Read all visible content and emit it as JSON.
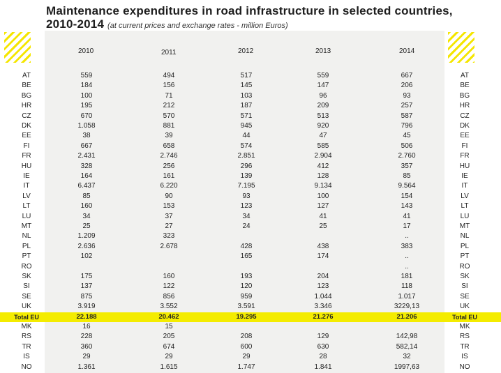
{
  "title": {
    "main_line1": "Maintenance expenditures in road infrastructure in selected countries,",
    "main_line2": "2010-2014",
    "subtitle": "(at current prices and exchange rates - million Euros)"
  },
  "colors": {
    "highlight": "#f4ec00",
    "hatch": "#f5e600",
    "panel": "#f1f1ef"
  },
  "years": [
    "2010",
    "2011",
    "2012",
    "2013",
    "2014"
  ],
  "rows": [
    {
      "code": "AT",
      "values": [
        "559",
        "494",
        "517",
        "559",
        "667"
      ]
    },
    {
      "code": "BE",
      "values": [
        "184",
        "156",
        "145",
        "147",
        "206"
      ]
    },
    {
      "code": "BG",
      "values": [
        "100",
        "71",
        "103",
        "96",
        "93"
      ]
    },
    {
      "code": "HR",
      "values": [
        "195",
        "212",
        "187",
        "209",
        "257"
      ]
    },
    {
      "code": "CZ",
      "values": [
        "670",
        "570",
        "571",
        "513",
        "587"
      ]
    },
    {
      "code": "DK",
      "values": [
        "1.058",
        "881",
        "945",
        "920",
        "796"
      ]
    },
    {
      "code": "EE",
      "values": [
        "38",
        "39",
        "44",
        "47",
        "45"
      ]
    },
    {
      "code": "FI",
      "values": [
        "667",
        "658",
        "574",
        "585",
        "506"
      ]
    },
    {
      "code": "FR",
      "values": [
        "2.431",
        "2.746",
        "2.851",
        "2.904",
        "2.760"
      ]
    },
    {
      "code": "HU",
      "values": [
        "328",
        "256",
        "296",
        "412",
        "357"
      ]
    },
    {
      "code": "IE",
      "values": [
        "164",
        "161",
        "139",
        "128",
        "85"
      ]
    },
    {
      "code": "IT",
      "values": [
        "6.437",
        "6.220",
        "7.195",
        "9.134",
        "9.564"
      ]
    },
    {
      "code": "LV",
      "values": [
        "85",
        "90",
        "93",
        "100",
        "154"
      ]
    },
    {
      "code": "LT",
      "values": [
        "160",
        "153",
        "123",
        "127",
        "143"
      ]
    },
    {
      "code": "LU",
      "values": [
        "34",
        "37",
        "34",
        "41",
        "41"
      ]
    },
    {
      "code": "MT",
      "values": [
        "25",
        "27",
        "24",
        "25",
        "17"
      ]
    },
    {
      "code": "NL",
      "values": [
        "1.209",
        "323",
        "",
        "",
        ".."
      ]
    },
    {
      "code": "PL",
      "values": [
        "2.636",
        "2.678",
        "428",
        "438",
        "383"
      ]
    },
    {
      "code": "PT",
      "values": [
        "102",
        "",
        "165",
        "174",
        ".."
      ]
    },
    {
      "code": "RO",
      "values": [
        "",
        "",
        "",
        "",
        ".."
      ]
    },
    {
      "code": "SK",
      "values": [
        "175",
        "160",
        "193",
        "204",
        "181"
      ]
    },
    {
      "code": "SI",
      "values": [
        "137",
        "122",
        "120",
        "123",
        "118"
      ]
    },
    {
      "code": "SE",
      "values": [
        "875",
        "856",
        "959",
        "1.044",
        "1.017"
      ]
    },
    {
      "code": "UK",
      "values": [
        "3.919",
        "3.552",
        "3.591",
        "3.346",
        "3229,13"
      ]
    },
    {
      "code": "Total EU",
      "values": [
        "22.188",
        "20.462",
        "19.295",
        "21.276",
        "21.206"
      ],
      "total": true
    },
    {
      "code": "MK",
      "values": [
        "16",
        "15",
        "",
        "",
        ""
      ]
    },
    {
      "code": "RS",
      "values": [
        "228",
        "205",
        "208",
        "129",
        "142,98"
      ]
    },
    {
      "code": "TR",
      "values": [
        "360",
        "674",
        "600",
        "630",
        "582,14"
      ]
    },
    {
      "code": "IS",
      "values": [
        "29",
        "29",
        "29",
        "28",
        "32"
      ]
    },
    {
      "code": "NO",
      "values": [
        "1.361",
        "1.615",
        "1.747",
        "1.841",
        "1997,63"
      ]
    }
  ]
}
